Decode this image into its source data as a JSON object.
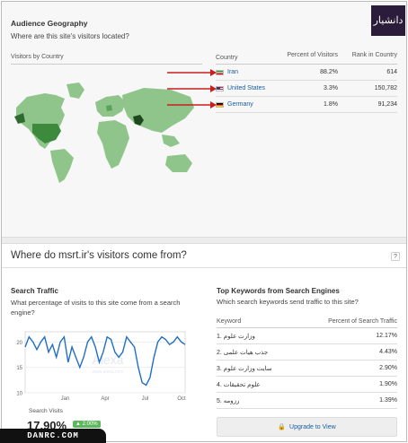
{
  "geography": {
    "title": "Audience Geography",
    "subtitle": "Where are this site's visitors located?",
    "map_label": "Visitors by Country",
    "columns": [
      "Country",
      "Percent of Visitors",
      "Rank in Country"
    ],
    "rows": [
      {
        "country": "Iran",
        "percent": "88.2%",
        "rank": "614",
        "flag": "iran-flag"
      },
      {
        "country": "United States",
        "percent": "3.3%",
        "rank": "150,782",
        "flag": "us-flag"
      },
      {
        "country": "Germany",
        "percent": "1.8%",
        "rank": "91,234",
        "flag": "germany-flag"
      }
    ]
  },
  "logo": {
    "text": "دانشیار"
  },
  "section": {
    "title": "Where do msrt.ir's visitors come from?",
    "help": "?"
  },
  "search_traffic": {
    "title": "Search Traffic",
    "subtitle": "What percentage of visits to this site come from a search engine?",
    "y_ticks": [
      "20",
      "15",
      "10"
    ],
    "x_ticks": [
      "Jan",
      "Apr",
      "Jul",
      "Oct"
    ],
    "watermark": "Alexa",
    "watermark_url": "www.alexa.com",
    "visits_label": "Search Visits",
    "visits_value": "17.90%",
    "visits_change": "▲ 2.00%"
  },
  "chart_data": {
    "type": "line",
    "ylim": [
      10,
      22
    ],
    "x_labels": [
      "Jan",
      "Apr",
      "Jul",
      "Oct"
    ],
    "series": [
      {
        "values": [
          19,
          21,
          20,
          18.5,
          20,
          21,
          18,
          19.5,
          17,
          20,
          21,
          16,
          19,
          17,
          15,
          17,
          20,
          21,
          19,
          16,
          18,
          21,
          20.5,
          18,
          17,
          18,
          21,
          20,
          19,
          15,
          12,
          11.5,
          13,
          17,
          20,
          21,
          20.5,
          19.5,
          20,
          21,
          20,
          19.5
        ]
      }
    ],
    "color": "#1f6fc5"
  },
  "keywords": {
    "title": "Top Keywords from Search Engines",
    "subtitle": "Which search keywords send traffic to this site?",
    "columns": [
      "Keyword",
      "Percent of Search Traffic"
    ],
    "rows": [
      {
        "keyword": "1. وزارت علوم",
        "percent": "12.17%"
      },
      {
        "keyword": "2. جذب هیات علمی",
        "percent": "4.43%"
      },
      {
        "keyword": "3. سایت وزارت علوم",
        "percent": "2.90%"
      },
      {
        "keyword": "4. علوم تحقیقات",
        "percent": "1.90%"
      },
      {
        "keyword": "5. رزومه",
        "percent": "1.39%"
      }
    ],
    "upgrade": "Upgrade to View"
  },
  "watermark": "DANRC.COM"
}
